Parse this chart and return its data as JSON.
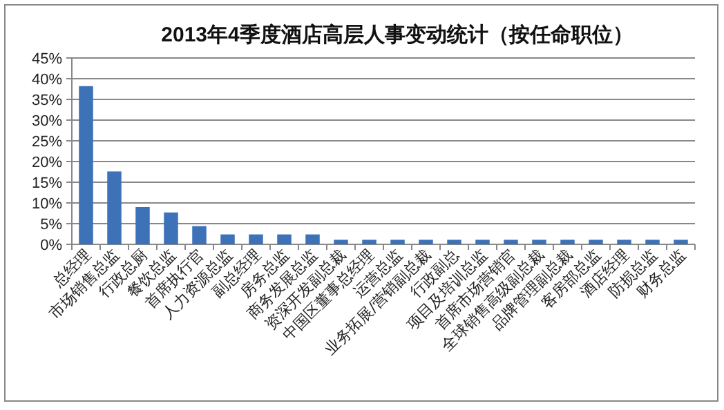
{
  "chart_data": {
    "type": "bar",
    "title": "2013年4季度酒店高层人事变动统计（按任命职位）",
    "categories": [
      "总经理",
      "市场销售总监",
      "行政总厨",
      "餐饮总监",
      "首席执行官",
      "人力资源总监",
      "副总经理",
      "房务总监",
      "商务发展总监",
      "资深开发副总裁",
      "中国区董事总经理",
      "运营总监",
      "业务拓展/营销副总裁",
      "行政副总",
      "项目及培训总监",
      "首席市场营销官",
      "全球销售高级副总裁",
      "品牌管理副总裁",
      "客房部总监",
      "酒店经理",
      "防损总监",
      "财务总监"
    ],
    "values": [
      38.2,
      17.6,
      9.0,
      7.7,
      4.4,
      2.4,
      2.4,
      2.4,
      2.4,
      1.1,
      1.1,
      1.1,
      1.1,
      1.1,
      1.1,
      1.1,
      1.1,
      1.1,
      1.1,
      1.1,
      1.1,
      1.1
    ],
    "color": "#3d72b8",
    "ylim": [
      0,
      45
    ],
    "yticks": [
      {
        "value": 0,
        "label": "0%"
      },
      {
        "value": 5,
        "label": "5%"
      },
      {
        "value": 10,
        "label": "10%"
      },
      {
        "value": 15,
        "label": "15%"
      },
      {
        "value": 20,
        "label": "20%"
      },
      {
        "value": 25,
        "label": "25%"
      },
      {
        "value": 30,
        "label": "30%"
      },
      {
        "value": 35,
        "label": "35%"
      },
      {
        "value": 40,
        "label": "40%"
      },
      {
        "value": 45,
        "label": "45%"
      }
    ],
    "grid": "y"
  }
}
